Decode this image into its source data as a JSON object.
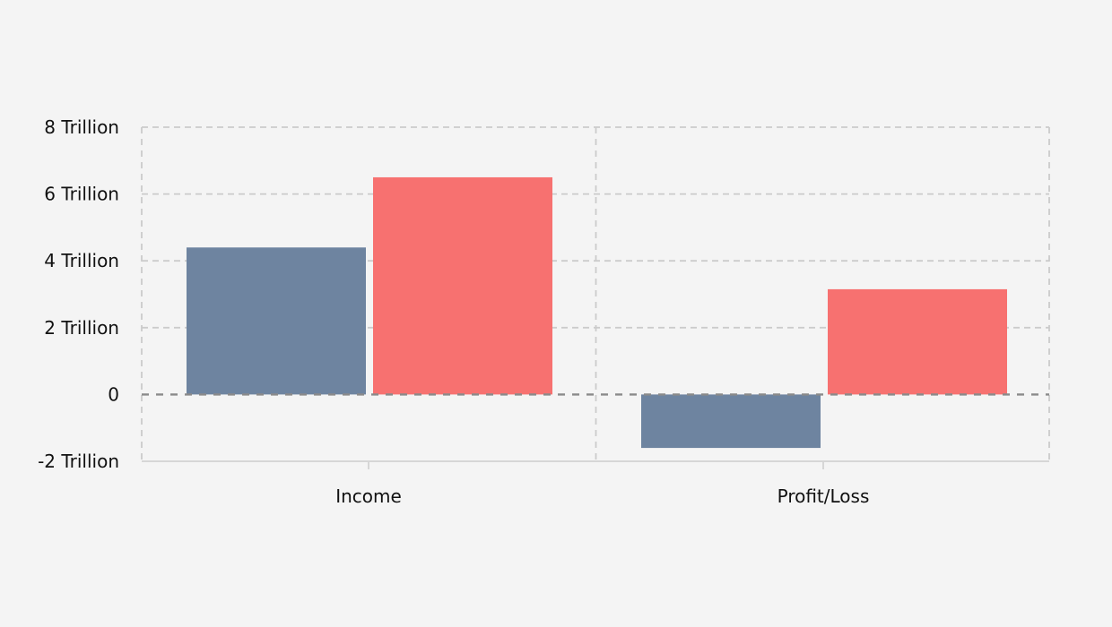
{
  "page": {
    "background": "#f4f4f4"
  },
  "chart_data": {
    "type": "bar",
    "title": "",
    "xlabel": "",
    "ylabel": "",
    "unit": "Trillion",
    "categories": [
      "Income",
      "Profit/Loss"
    ],
    "series": [
      {
        "name": "blue-series",
        "color": "#6e84a0",
        "values": [
          4.4,
          -1.6
        ]
      },
      {
        "name": "red-series",
        "color": "#f77170",
        "values": [
          6.5,
          3.15
        ]
      }
    ],
    "y_axis": {
      "ylim": [
        -2,
        8
      ],
      "ticks": [
        {
          "value": 8,
          "label": "8 Trillion"
        },
        {
          "value": 6,
          "label": "6 Trillion"
        },
        {
          "value": 4,
          "label": "4 Trillion"
        },
        {
          "value": 2,
          "label": "2 Trillion"
        },
        {
          "value": 0,
          "label": "0"
        },
        {
          "value": -2,
          "label": "-2 Trillion"
        }
      ]
    },
    "layout_hints": {
      "grid": "dashed-horizontal",
      "group_dividers": "dashed-vertical",
      "zero_line": "dashed-dark-over-bars",
      "legend": "none"
    },
    "colors": {
      "text": "#111111",
      "gridline": "#cbcbcb",
      "zero_line": "#8a8a8a",
      "axis_line": "#d6d6d6",
      "tick_mark": "#d6d6d6"
    }
  }
}
